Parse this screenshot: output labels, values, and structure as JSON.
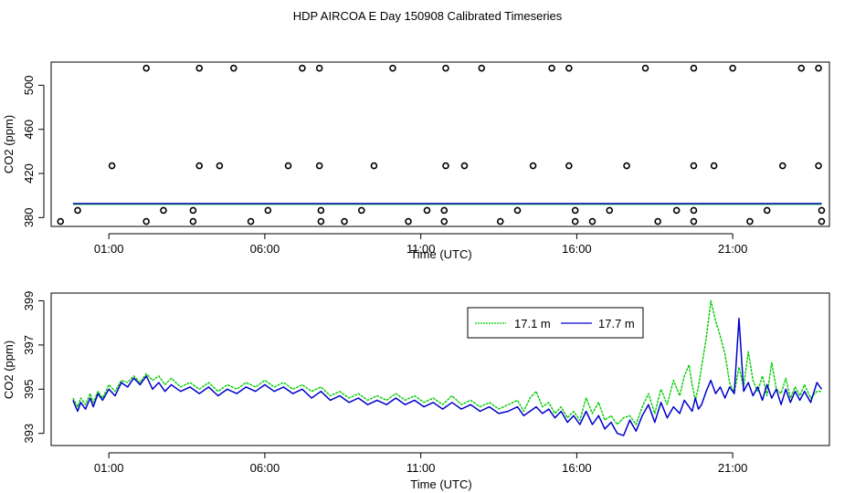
{
  "title": "HDP AIRCOA E  Day 150908  Calibrated Timeseries",
  "chart_data": [
    {
      "type": "scatter",
      "xlabel": "Time (UTC)",
      "ylabel": "CO2 (ppm)",
      "x_unit": "hours UTC",
      "xlim": [
        -0.85,
        24.1
      ],
      "ylim": [
        372,
        521
      ],
      "xticks": [
        {
          "v": 1,
          "label": "01:00"
        },
        {
          "v": 6,
          "label": "06:00"
        },
        {
          "v": 11,
          "label": "11:00"
        },
        {
          "v": 16,
          "label": "16:00"
        },
        {
          "v": 21,
          "label": "21:00"
        }
      ],
      "yticks": [
        {
          "v": 380,
          "label": "380"
        },
        {
          "v": 420,
          "label": "420"
        },
        {
          "v": 460,
          "label": "460"
        },
        {
          "v": 500,
          "label": "500"
        }
      ],
      "calibration_points": [
        {
          "x": 1.1,
          "y": 427.0
        },
        {
          "x": 2.2,
          "y": 515.5
        },
        {
          "x": 3.9,
          "y": 427.0
        },
        {
          "x": 3.9,
          "y": 515.5
        },
        {
          "x": 4.55,
          "y": 427.0
        },
        {
          "x": 5.0,
          "y": 515.5
        },
        {
          "x": 6.75,
          "y": 427.0
        },
        {
          "x": 7.2,
          "y": 515.5
        },
        {
          "x": 7.75,
          "y": 427.0
        },
        {
          "x": 7.75,
          "y": 515.5
        },
        {
          "x": 9.5,
          "y": 427.0
        },
        {
          "x": 10.1,
          "y": 515.5
        },
        {
          "x": 11.8,
          "y": 427.0
        },
        {
          "x": 11.8,
          "y": 515.5
        },
        {
          "x": 12.4,
          "y": 427.0
        },
        {
          "x": 12.95,
          "y": 515.5
        },
        {
          "x": 14.6,
          "y": 427.0
        },
        {
          "x": 15.2,
          "y": 515.5
        },
        {
          "x": 15.75,
          "y": 427.0
        },
        {
          "x": 15.75,
          "y": 515.5
        },
        {
          "x": 17.6,
          "y": 427.0
        },
        {
          "x": 18.2,
          "y": 515.5
        },
        {
          "x": 19.75,
          "y": 427.0
        },
        {
          "x": 19.75,
          "y": 515.5
        },
        {
          "x": 20.4,
          "y": 427.0
        },
        {
          "x": 21.0,
          "y": 515.5
        },
        {
          "x": 22.6,
          "y": 427.0
        },
        {
          "x": 23.2,
          "y": 515.5
        },
        {
          "x": 23.75,
          "y": 427.0
        },
        {
          "x": 23.75,
          "y": 515.5
        },
        {
          "x": 0.0,
          "y": 386.5
        },
        {
          "x": -0.55,
          "y": 376.5
        },
        {
          "x": 2.2,
          "y": 376.5
        },
        {
          "x": 2.75,
          "y": 386.5
        },
        {
          "x": 3.7,
          "y": 376.5
        },
        {
          "x": 3.7,
          "y": 386.5
        },
        {
          "x": 5.55,
          "y": 376.5
        },
        {
          "x": 6.1,
          "y": 386.5
        },
        {
          "x": 7.8,
          "y": 376.5
        },
        {
          "x": 7.8,
          "y": 386.5
        },
        {
          "x": 8.55,
          "y": 376.5
        },
        {
          "x": 9.1,
          "y": 386.5
        },
        {
          "x": 10.6,
          "y": 376.5
        },
        {
          "x": 11.2,
          "y": 386.5
        },
        {
          "x": 11.75,
          "y": 376.5
        },
        {
          "x": 11.75,
          "y": 386.5
        },
        {
          "x": 13.55,
          "y": 376.5
        },
        {
          "x": 14.1,
          "y": 386.5
        },
        {
          "x": 15.95,
          "y": 376.5
        },
        {
          "x": 15.95,
          "y": 386.5
        },
        {
          "x": 16.5,
          "y": 376.5
        },
        {
          "x": 17.05,
          "y": 386.5
        },
        {
          "x": 18.6,
          "y": 376.5
        },
        {
          "x": 19.2,
          "y": 386.5
        },
        {
          "x": 19.75,
          "y": 376.5
        },
        {
          "x": 19.75,
          "y": 386.5
        },
        {
          "x": 21.55,
          "y": 376.5
        },
        {
          "x": 22.1,
          "y": 386.5
        },
        {
          "x": 23.85,
          "y": 376.5
        },
        {
          "x": 23.85,
          "y": 386.5
        }
      ],
      "series": [
        {
          "name": "17.1 m",
          "color": "#00cc00",
          "baseline": 392.7
        },
        {
          "name": "17.7 m",
          "color": "#0000cc",
          "baseline": 392.7
        }
      ]
    },
    {
      "type": "line",
      "xlabel": "Time (UTC)",
      "ylabel": "CO2 (ppm)",
      "x_unit": "hours UTC",
      "xlim": [
        -0.85,
        24.1
      ],
      "ylim": [
        392.45,
        399.35
      ],
      "xticks": [
        {
          "v": 1,
          "label": "01:00"
        },
        {
          "v": 6,
          "label": "06:00"
        },
        {
          "v": 11,
          "label": "11:00"
        },
        {
          "v": 16,
          "label": "16:00"
        },
        {
          "v": 21,
          "label": "21:00"
        }
      ],
      "yticks": [
        {
          "v": 393,
          "label": "393"
        },
        {
          "v": 395,
          "label": "395"
        },
        {
          "v": 397,
          "label": "397"
        },
        {
          "v": 399,
          "label": "399"
        }
      ],
      "legend": {
        "placement": "top-right"
      },
      "series": [
        {
          "name": "17.1 m",
          "color": "#00cc00",
          "x": [
            -0.15,
            0.0,
            0.1,
            0.25,
            0.4,
            0.5,
            0.65,
            0.8,
            1.0,
            1.2,
            1.4,
            1.6,
            1.8,
            2.0,
            2.2,
            2.4,
            2.6,
            2.8,
            3.0,
            3.3,
            3.6,
            3.9,
            4.2,
            4.5,
            4.8,
            5.1,
            5.4,
            5.7,
            6.0,
            6.3,
            6.6,
            6.9,
            7.2,
            7.5,
            7.8,
            8.1,
            8.4,
            8.7,
            9.0,
            9.3,
            9.6,
            9.9,
            10.2,
            10.5,
            10.8,
            11.1,
            11.4,
            11.7,
            12.0,
            12.3,
            12.6,
            12.9,
            13.2,
            13.5,
            13.8,
            14.1,
            14.3,
            14.5,
            14.7,
            14.9,
            15.1,
            15.3,
            15.5,
            15.7,
            15.9,
            16.1,
            16.3,
            16.5,
            16.7,
            16.9,
            17.1,
            17.3,
            17.5,
            17.7,
            17.9,
            18.1,
            18.3,
            18.5,
            18.7,
            18.9,
            19.1,
            19.3,
            19.45,
            19.6,
            19.7,
            19.8,
            19.9,
            20.0,
            20.15,
            20.3,
            20.45,
            20.6,
            20.75,
            20.9,
            21.05,
            21.2,
            21.35,
            21.5,
            21.65,
            21.8,
            21.95,
            22.1,
            22.25,
            22.4,
            22.55,
            22.7,
            22.85,
            23.0,
            23.15,
            23.3,
            23.5,
            23.7,
            23.85
          ],
          "y": [
            394.6,
            394.2,
            394.6,
            394.3,
            394.8,
            394.4,
            394.9,
            394.6,
            395.2,
            394.9,
            395.4,
            395.3,
            395.6,
            395.3,
            395.7,
            395.4,
            395.6,
            395.2,
            395.5,
            395.1,
            395.3,
            395.0,
            395.3,
            394.9,
            395.2,
            395.0,
            395.3,
            395.1,
            395.4,
            395.1,
            395.3,
            395.0,
            395.2,
            394.9,
            395.1,
            394.7,
            394.9,
            394.6,
            394.8,
            394.5,
            394.7,
            394.5,
            394.8,
            394.5,
            394.7,
            394.4,
            394.6,
            394.3,
            394.7,
            394.3,
            394.5,
            394.2,
            394.4,
            394.1,
            394.3,
            394.5,
            394.0,
            394.6,
            394.9,
            394.2,
            394.4,
            393.9,
            394.2,
            393.7,
            394.0,
            393.6,
            394.6,
            393.9,
            394.4,
            393.6,
            393.8,
            393.4,
            393.7,
            393.8,
            393.4,
            394.2,
            394.8,
            393.9,
            395.0,
            394.3,
            395.4,
            394.7,
            395.6,
            396.1,
            395.2,
            394.5,
            395.1,
            396.0,
            397.3,
            399.0,
            398.1,
            397.4,
            396.6,
            395.3,
            394.8,
            396.0,
            395.1,
            396.7,
            395.4,
            394.9,
            395.6,
            394.7,
            396.2,
            395.0,
            394.8,
            395.5,
            394.6,
            395.1,
            394.7,
            395.2,
            394.6,
            394.9,
            394.9
          ]
        },
        {
          "name": "17.7 m",
          "color": "#0000cc",
          "x": [
            -0.15,
            0.0,
            0.1,
            0.25,
            0.4,
            0.5,
            0.65,
            0.8,
            1.0,
            1.2,
            1.4,
            1.6,
            1.8,
            2.0,
            2.2,
            2.4,
            2.6,
            2.8,
            3.0,
            3.3,
            3.6,
            3.9,
            4.2,
            4.5,
            4.8,
            5.1,
            5.4,
            5.7,
            6.0,
            6.3,
            6.6,
            6.9,
            7.2,
            7.5,
            7.8,
            8.1,
            8.4,
            8.7,
            9.0,
            9.3,
            9.6,
            9.9,
            10.2,
            10.5,
            10.8,
            11.1,
            11.4,
            11.7,
            12.0,
            12.3,
            12.6,
            12.9,
            13.2,
            13.5,
            13.8,
            14.1,
            14.3,
            14.5,
            14.7,
            14.9,
            15.1,
            15.3,
            15.5,
            15.7,
            15.9,
            16.1,
            16.3,
            16.5,
            16.7,
            16.9,
            17.1,
            17.3,
            17.5,
            17.7,
            17.9,
            18.1,
            18.3,
            18.5,
            18.7,
            18.9,
            19.1,
            19.3,
            19.45,
            19.6,
            19.7,
            19.8,
            19.9,
            20.0,
            20.15,
            20.3,
            20.45,
            20.6,
            20.75,
            20.9,
            21.05,
            21.2,
            21.35,
            21.5,
            21.65,
            21.8,
            21.95,
            22.1,
            22.25,
            22.4,
            22.55,
            22.7,
            22.85,
            23.0,
            23.15,
            23.3,
            23.5,
            23.7,
            23.85
          ],
          "y": [
            394.5,
            394.0,
            394.4,
            394.1,
            394.6,
            394.2,
            394.8,
            394.5,
            395.0,
            394.7,
            395.3,
            395.1,
            395.5,
            395.2,
            395.6,
            395.0,
            395.3,
            394.9,
            395.2,
            394.9,
            395.1,
            394.8,
            395.1,
            394.7,
            395.0,
            394.8,
            395.1,
            394.9,
            395.2,
            394.9,
            395.1,
            394.8,
            395.0,
            394.6,
            394.9,
            394.5,
            394.7,
            394.4,
            394.6,
            394.3,
            394.5,
            394.3,
            394.6,
            394.3,
            394.5,
            394.2,
            394.4,
            394.1,
            394.4,
            394.1,
            394.3,
            394.0,
            394.2,
            393.9,
            394.0,
            394.2,
            393.8,
            394.0,
            394.2,
            393.9,
            394.1,
            393.7,
            394.0,
            393.5,
            393.8,
            393.4,
            394.0,
            393.4,
            393.8,
            393.2,
            393.5,
            393.0,
            392.9,
            393.6,
            393.1,
            393.8,
            394.3,
            393.5,
            394.4,
            393.7,
            394.2,
            393.9,
            394.5,
            394.2,
            394.0,
            394.6,
            394.1,
            394.3,
            394.9,
            395.4,
            394.8,
            395.1,
            394.6,
            395.1,
            394.8,
            398.2,
            394.9,
            395.3,
            394.7,
            395.1,
            394.5,
            395.2,
            394.6,
            395.0,
            394.3,
            395.0,
            394.4,
            394.9,
            394.5,
            394.9,
            394.4,
            395.3,
            395.0
          ]
        }
      ]
    }
  ]
}
